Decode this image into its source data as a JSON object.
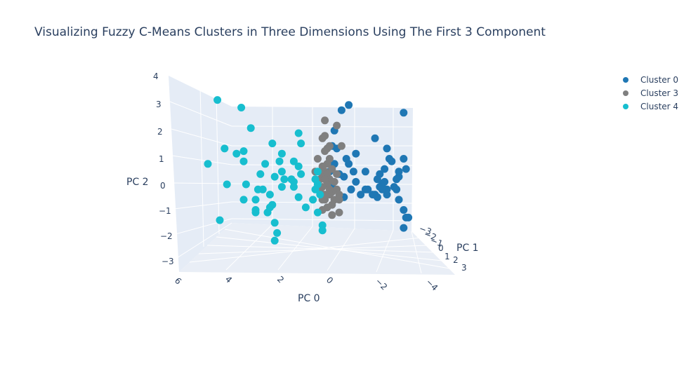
{
  "chart_data": {
    "type": "scatter3d",
    "title": "Visualizing Fuzzy C-Means Clusters in Three Dimensions Using The First 3 Component",
    "axes": {
      "x": {
        "label": "PC 0",
        "ticks": [
          "6",
          "4",
          "2",
          "0",
          "−2",
          "−4"
        ]
      },
      "y": {
        "label": "PC 1",
        "ticks": [
          "−3",
          "−2",
          "−1",
          "0",
          "1",
          "2",
          "3"
        ]
      },
      "z": {
        "label": "PC 2",
        "ticks": [
          "4",
          "3",
          "2",
          "1",
          "0",
          "−1",
          "−2",
          "−3"
        ]
      }
    },
    "legend_position": "top-right",
    "series": [
      {
        "name": "Cluster 0",
        "color": "#1f77b4",
        "points": [
          [
            -0.6,
            2.9
          ],
          [
            -0.9,
            3.1
          ],
          [
            -0.3,
            2.1
          ],
          [
            -2.0,
            1.8
          ],
          [
            -0.4,
            1.4
          ],
          [
            -0.2,
            1.5
          ],
          [
            -1.2,
            1.2
          ],
          [
            -0.8,
            1.0
          ],
          [
            -2.6,
            1.0
          ],
          [
            -3.2,
            1.0
          ],
          [
            -2.7,
            0.9
          ],
          [
            -2.4,
            0.6
          ],
          [
            -2.2,
            0.4
          ],
          [
            -0.1,
            0.5
          ],
          [
            -0.7,
            0.3
          ],
          [
            -1.2,
            0.1
          ],
          [
            -1.1,
            0.5
          ],
          [
            -1.6,
            0.5
          ],
          [
            -0.3,
            0.8
          ],
          [
            -0.5,
            0.4
          ],
          [
            -2.1,
            0.2
          ],
          [
            -2.4,
            0.1
          ],
          [
            -1.6,
            -0.2
          ],
          [
            -1.0,
            -0.2
          ],
          [
            -0.2,
            -0.1
          ],
          [
            -2.8,
            -0.1
          ],
          [
            -3.0,
            0.5
          ],
          [
            -3.3,
            0.6
          ],
          [
            -3.0,
            0.3
          ],
          [
            -2.5,
            -0.2
          ],
          [
            -2.3,
            0.0
          ],
          [
            -3.0,
            -0.6
          ],
          [
            -2.5,
            -0.4
          ],
          [
            -2.1,
            -0.5
          ],
          [
            -2.2,
            -0.1
          ],
          [
            -1.9,
            -0.4
          ],
          [
            -2.9,
            -0.2
          ],
          [
            -3.2,
            -1.0
          ],
          [
            -3.3,
            -1.3
          ],
          [
            -3.2,
            -1.7
          ],
          [
            -3.4,
            -1.3
          ],
          [
            -2.3,
            -0.2
          ],
          [
            -0.7,
            -0.5
          ],
          [
            -1.0,
            -0.2
          ],
          [
            -2.0,
            -0.4
          ],
          [
            -2.9,
            0.2
          ],
          [
            -0.9,
            0.8
          ],
          [
            -2.5,
            1.4
          ],
          [
            -3.2,
            2.8
          ],
          [
            -1.7,
            -0.2
          ],
          [
            -1.4,
            -0.4
          ]
        ]
      },
      {
        "name": "Cluster 3",
        "color": "#7f7f7f",
        "points": [
          [
            0.1,
            2.5
          ],
          [
            -0.4,
            2.3
          ],
          [
            0.2,
            1.8
          ],
          [
            0.0,
            1.4
          ],
          [
            0.1,
            1.3
          ],
          [
            -0.1,
            1.0
          ],
          [
            0.1,
            0.5
          ],
          [
            0.2,
            0.4
          ],
          [
            0.0,
            0.4
          ],
          [
            -0.1,
            0.2
          ],
          [
            -0.3,
            0.1
          ],
          [
            0.0,
            0.0
          ],
          [
            0.2,
            -0.1
          ],
          [
            -0.2,
            -0.3
          ],
          [
            -0.4,
            -0.2
          ],
          [
            0.1,
            -0.6
          ],
          [
            -0.2,
            -0.8
          ],
          [
            -0.5,
            -1.1
          ],
          [
            0.3,
            -0.3
          ],
          [
            0.5,
            0.5
          ],
          [
            0.3,
            0.2
          ],
          [
            -0.1,
            -0.4
          ],
          [
            -0.3,
            -0.6
          ],
          [
            0.2,
            -1.0
          ],
          [
            -0.2,
            -1.2
          ],
          [
            0.1,
            1.9
          ],
          [
            -0.6,
            1.5
          ],
          [
            0.4,
            1.0
          ],
          [
            0.2,
            -0.6
          ],
          [
            -0.4,
            0.4
          ],
          [
            0.0,
            0.8
          ],
          [
            -0.2,
            0.6
          ],
          [
            0.4,
            0.1
          ],
          [
            0.1,
            -0.4
          ],
          [
            -0.5,
            -0.4
          ],
          [
            0.0,
            -0.9
          ],
          [
            -0.3,
            -0.6
          ],
          [
            0.2,
            0.7
          ],
          [
            -0.1,
            1.5
          ],
          [
            -0.5,
            -0.6
          ],
          [
            0.1,
            0.2
          ],
          [
            -0.1,
            -0.2
          ]
        ]
      },
      {
        "name": "Cluster 4",
        "color": "#17becf",
        "points": [
          [
            4.6,
            3.3
          ],
          [
            3.6,
            3.0
          ],
          [
            3.2,
            2.2
          ],
          [
            1.2,
            2.0
          ],
          [
            2.3,
            1.6
          ],
          [
            1.1,
            1.6
          ],
          [
            4.3,
            1.4
          ],
          [
            3.5,
            1.3
          ],
          [
            3.8,
            1.2
          ],
          [
            3.5,
            0.9
          ],
          [
            5.0,
            0.8
          ],
          [
            1.4,
            0.9
          ],
          [
            2.0,
            0.9
          ],
          [
            2.6,
            0.8
          ],
          [
            1.1,
            0.4
          ],
          [
            2.8,
            0.4
          ],
          [
            2.2,
            0.3
          ],
          [
            1.8,
            0.2
          ],
          [
            1.5,
            0.2
          ],
          [
            1.4,
            0.1
          ],
          [
            0.5,
            0.2
          ],
          [
            0.4,
            0.0
          ],
          [
            3.4,
            0.0
          ],
          [
            4.2,
            0.0
          ],
          [
            2.7,
            -0.2
          ],
          [
            2.9,
            -0.2
          ],
          [
            1.9,
            -0.1
          ],
          [
            1.4,
            -0.1
          ],
          [
            0.5,
            -0.2
          ],
          [
            0.3,
            -0.4
          ],
          [
            2.4,
            -0.4
          ],
          [
            3.5,
            -0.6
          ],
          [
            2.3,
            -0.8
          ],
          [
            3.0,
            -0.6
          ],
          [
            1.2,
            -0.5
          ],
          [
            3.0,
            -1.0
          ],
          [
            0.6,
            -0.6
          ],
          [
            0.9,
            -0.9
          ],
          [
            2.5,
            -1.1
          ],
          [
            3.0,
            -1.1
          ],
          [
            2.4,
            -0.9
          ],
          [
            0.4,
            -1.1
          ],
          [
            2.2,
            -1.5
          ],
          [
            4.5,
            -1.4
          ],
          [
            0.2,
            -1.6
          ],
          [
            0.2,
            -1.8
          ],
          [
            2.1,
            -1.9
          ],
          [
            2.2,
            -2.2
          ],
          [
            0.4,
            0.5
          ],
          [
            1.2,
            0.7
          ],
          [
            1.9,
            1.2
          ],
          [
            1.9,
            0.5
          ]
        ]
      }
    ]
  }
}
